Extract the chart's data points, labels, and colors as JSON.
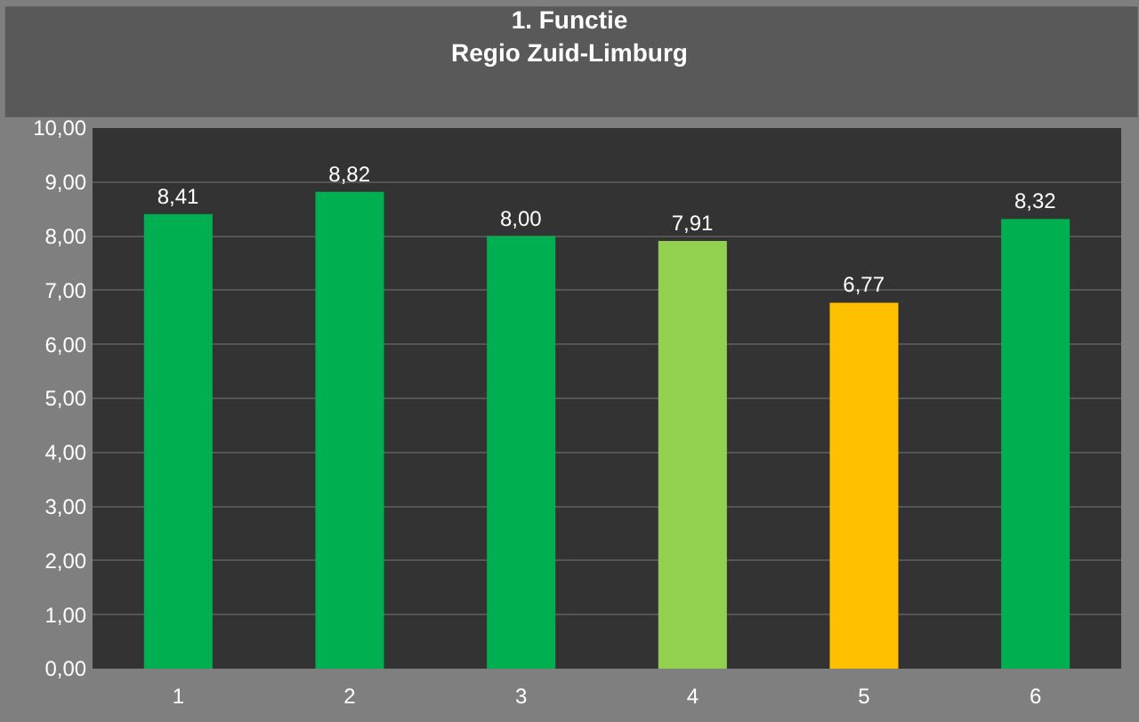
{
  "chart_data": {
    "type": "bar",
    "title": "1. Functie\nRegio Zuid-Limburg",
    "categories": [
      "1",
      "2",
      "3",
      "4",
      "5",
      "6"
    ],
    "values": [
      8.41,
      8.82,
      8.0,
      7.91,
      6.77,
      8.32
    ],
    "colors": [
      "#00b050",
      "#00b050",
      "#00b050",
      "#92d050",
      "#ffc000",
      "#00b050"
    ],
    "value_labels": [
      "8,41",
      "8,82",
      "8,00",
      "7,91",
      "6,77",
      "8,32"
    ],
    "ylim": [
      0,
      10
    ],
    "yticks": [
      {
        "value": 0,
        "label": "0,00"
      },
      {
        "value": 1,
        "label": "1,00"
      },
      {
        "value": 2,
        "label": "2,00"
      },
      {
        "value": 3,
        "label": "3,00"
      },
      {
        "value": 4,
        "label": "4,00"
      },
      {
        "value": 5,
        "label": "5,00"
      },
      {
        "value": 6,
        "label": "6,00"
      },
      {
        "value": 7,
        "label": "7,00"
      },
      {
        "value": 8,
        "label": "8,00"
      },
      {
        "value": 9,
        "label": "9,00"
      },
      {
        "value": 10,
        "label": "10,00"
      }
    ],
    "grid": "y",
    "legend": false
  }
}
